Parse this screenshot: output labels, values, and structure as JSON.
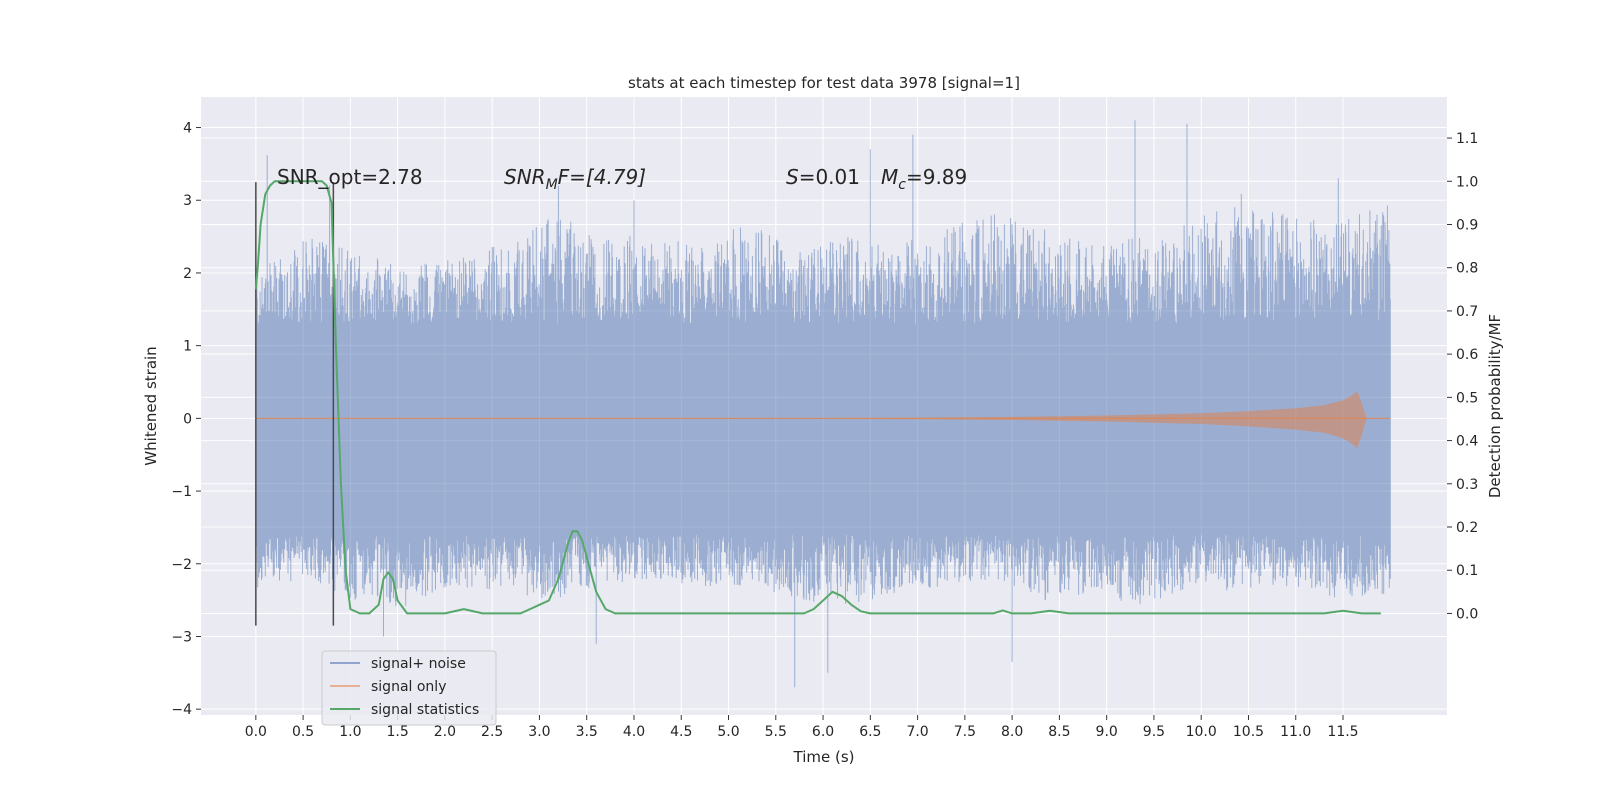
{
  "chart_data": {
    "type": "line",
    "title": "stats at each timestep for test data 3978 [signal=1]",
    "xlabel": "Time (s)",
    "ylabel": "Whitened strain",
    "y2label": "Detection probability/MF",
    "xlim": [
      -0.58,
      12.6
    ],
    "ylim": [
      -4.08,
      4.42
    ],
    "y2lim": [
      -0.235,
      1.195
    ],
    "xticks": [
      "0.0",
      "0.5",
      "1.0",
      "1.5",
      "2.0",
      "2.5",
      "3.0",
      "3.5",
      "4.0",
      "4.5",
      "5.0",
      "5.5",
      "6.0",
      "6.5",
      "7.0",
      "7.5",
      "8.0",
      "8.5",
      "9.0",
      "9.5",
      "10.0",
      "10.5",
      "11.0",
      "11.5"
    ],
    "yticks": [
      "−4",
      "−3",
      "−2",
      "−1",
      "0",
      "1",
      "2",
      "3",
      "4"
    ],
    "y2ticks": [
      "0.0",
      "0.1",
      "0.2",
      "0.3",
      "0.4",
      "0.5",
      "0.6",
      "0.7",
      "0.8",
      "0.9",
      "1.0",
      "1.1"
    ],
    "grid": true,
    "legend_placement": "lower-left",
    "annotations": {
      "snr_opt": "SNR_opt=2.78",
      "snr_mf_prefix": "SNR",
      "snr_mf_sub": "M",
      "snr_mf_suffix": "F=[4.79]",
      "s_prefix": "S",
      "s_value": "=0.01",
      "mc_prefix": "M",
      "mc_sub": "c",
      "mc_value": "=9.89"
    },
    "series": [
      {
        "name": "signal+ noise",
        "color": "#4c72b0",
        "axis": "left",
        "x_range": [
          0.0,
          12.0
        ],
        "envelope_top": [
          2.0,
          2.6,
          2.3,
          2.1,
          2.2,
          2.4,
          2.8,
          2.6,
          2.5,
          2.4,
          2.7,
          2.3,
          2.5,
          2.4,
          2.6,
          2.9,
          2.6,
          2.4,
          2.5,
          2.7,
          3.1,
          2.8,
          2.7,
          3.0
        ],
        "envelope_bottom": [
          -2.4,
          -2.2,
          -2.5,
          -2.6,
          -2.3,
          -2.4,
          -2.5,
          -2.3,
          -2.2,
          -2.4,
          -2.3,
          -2.5,
          -2.6,
          -2.4,
          -2.3,
          -2.2,
          -2.5,
          -2.4,
          -2.6,
          -2.3,
          -2.4,
          -2.3,
          -2.5,
          -2.4
        ],
        "peaks": [
          [
            0.12,
            3.62
          ],
          [
            0.78,
            3.2
          ],
          [
            3.2,
            3.2
          ],
          [
            4.0,
            3.0
          ],
          [
            6.5,
            3.7
          ],
          [
            6.95,
            3.9
          ],
          [
            9.3,
            4.1
          ],
          [
            9.85,
            4.05
          ],
          [
            11.45,
            3.3
          ],
          [
            5.7,
            -3.7
          ],
          [
            6.05,
            -3.5
          ],
          [
            3.6,
            -3.1
          ],
          [
            8.0,
            -3.35
          ],
          [
            1.35,
            -3.0
          ]
        ]
      },
      {
        "name": "signal only",
        "color": "#dd8452",
        "axis": "left",
        "x": [
          0.0,
          6.0,
          7.0,
          8.0,
          9.0,
          10.0,
          10.5,
          11.0,
          11.3,
          11.5,
          11.6,
          11.65,
          11.7,
          11.75,
          12.0
        ],
        "amplitude": [
          0.0,
          0.005,
          0.01,
          0.02,
          0.04,
          0.07,
          0.1,
          0.14,
          0.18,
          0.25,
          0.32,
          0.38,
          0.2,
          0.0,
          0.0
        ]
      },
      {
        "name": "signal statistics",
        "color": "#55a868",
        "axis": "right",
        "x": [
          0.0,
          0.02,
          0.05,
          0.1,
          0.15,
          0.2,
          0.3,
          0.4,
          0.5,
          0.6,
          0.7,
          0.75,
          0.8,
          0.85,
          0.9,
          0.95,
          1.0,
          1.1,
          1.2,
          1.3,
          1.35,
          1.4,
          1.45,
          1.5,
          1.6,
          1.8,
          2.0,
          2.2,
          2.4,
          2.6,
          2.8,
          2.9,
          3.0,
          3.1,
          3.2,
          3.3,
          3.35,
          3.4,
          3.45,
          3.5,
          3.6,
          3.7,
          3.8,
          4.0,
          4.5,
          5.0,
          5.5,
          5.8,
          5.9,
          6.0,
          6.1,
          6.2,
          6.3,
          6.4,
          6.5,
          7.0,
          7.5,
          7.8,
          7.9,
          8.0,
          8.2,
          8.4,
          8.6,
          9.0,
          9.5,
          10.0,
          10.5,
          11.0,
          11.3,
          11.5,
          11.7,
          11.9
        ],
        "values": [
          0.75,
          0.8,
          0.9,
          0.97,
          0.99,
          1.0,
          1.0,
          1.0,
          1.0,
          1.0,
          1.0,
          0.99,
          0.95,
          0.6,
          0.3,
          0.1,
          0.01,
          0.0,
          0.0,
          0.02,
          0.08,
          0.095,
          0.08,
          0.03,
          0.0,
          0.0,
          0.0,
          0.01,
          0.0,
          0.0,
          0.0,
          0.01,
          0.02,
          0.03,
          0.08,
          0.16,
          0.19,
          0.19,
          0.17,
          0.13,
          0.05,
          0.01,
          0.0,
          0.0,
          0.0,
          0.0,
          0.0,
          0.0,
          0.01,
          0.03,
          0.05,
          0.04,
          0.02,
          0.005,
          0.0,
          0.0,
          0.0,
          0.0,
          0.007,
          0.0,
          0.0,
          0.006,
          0.0,
          0.0,
          0.0,
          0.0,
          0.0,
          0.0,
          0.0,
          0.006,
          0.0,
          0.0
        ]
      }
    ],
    "vertical_lines": [
      {
        "x": 0.0,
        "y0": -2.85,
        "y1": 3.25
      },
      {
        "x": 0.82,
        "y0": -2.85,
        "y1": 3.25
      }
    ]
  }
}
